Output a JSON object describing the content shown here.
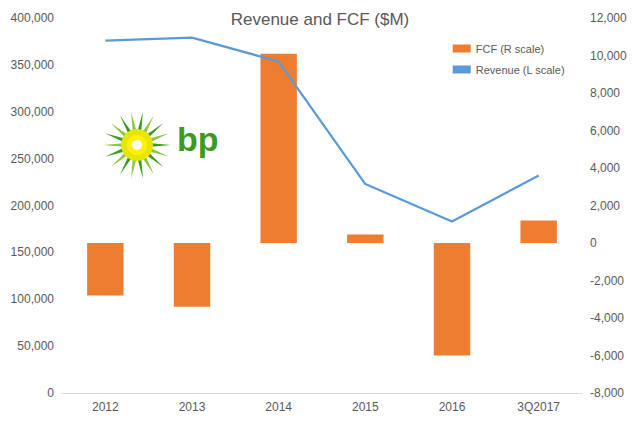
{
  "chart_data": {
    "type": "bar",
    "title": "Revenue and FCF ($M)",
    "categories": [
      "2012",
      "2013",
      "2014",
      "2015",
      "2016",
      "3Q2017"
    ],
    "series": [
      {
        "name": "FCF (R scale)",
        "type": "bar",
        "axis": "y2",
        "color": "#ED7D31",
        "values": [
          -2800,
          -3400,
          10100,
          450,
          -6000,
          1200
        ]
      },
      {
        "name": "Revenue (L scale)",
        "type": "line",
        "color": "#5B9BD5",
        "marker": "none",
        "line_style": "solid",
        "values": [
          375765,
          379136,
          353568,
          222894,
          183008,
          232000
        ]
      }
    ],
    "ylim": [
      0,
      400000
    ],
    "yticks": [
      0,
      {
        "value": 50000,
        "label": "50,000"
      },
      {
        "value": 100000,
        "label": "100,000"
      },
      {
        "value": 150000,
        "label": "150,000"
      },
      {
        "value": 200000,
        "label": "200,000"
      },
      {
        "value": 250000,
        "label": "250,000"
      },
      {
        "value": 300000,
        "label": "300,000"
      },
      {
        "value": 350000,
        "label": "350,000"
      },
      {
        "value": 400000,
        "label": "400,000"
      }
    ],
    "y2lim": [
      -8000,
      12000
    ],
    "y2ticks": [
      {
        "value": -8000,
        "label": "-8,000"
      },
      {
        "value": -6000,
        "label": "-6,000"
      },
      {
        "value": -4000,
        "label": "-4,000"
      },
      {
        "value": -2000,
        "label": "-2,000"
      },
      0,
      {
        "value": 2000,
        "label": "2,000"
      },
      {
        "value": 4000,
        "label": "4,000"
      },
      {
        "value": 6000,
        "label": "6,000"
      },
      {
        "value": 8000,
        "label": "8,000"
      },
      {
        "value": 10000,
        "label": "10,000"
      },
      {
        "value": 12000,
        "label": "12,000"
      }
    ],
    "grid": false,
    "legend": "top-right",
    "annotations": [
      {
        "text": "bp",
        "color": "#3C9A1F"
      }
    ]
  }
}
